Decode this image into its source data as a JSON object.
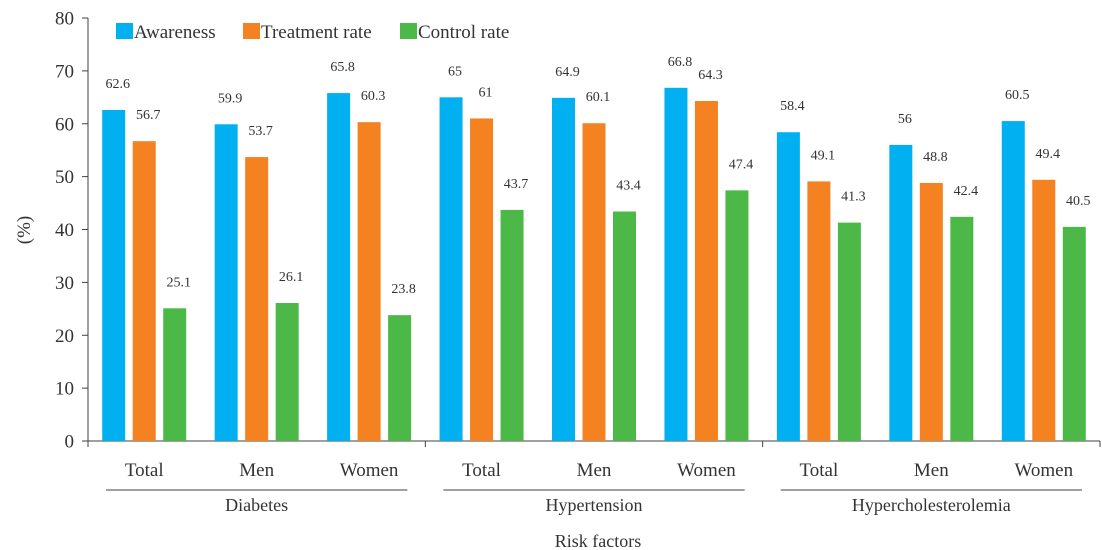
{
  "chart_data": {
    "type": "bar",
    "xlabel": "Risk factors",
    "ylabel": "(%)",
    "ylim": [
      0,
      80
    ],
    "yticks": [
      "0",
      "10",
      "20",
      "30",
      "40",
      "50",
      "60",
      "70",
      "80"
    ],
    "legend_position": "top-left",
    "groups": [
      {
        "name": "Diabetes",
        "categories": [
          "Total",
          "Men",
          "Women"
        ]
      },
      {
        "name": "Hypertension",
        "categories": [
          "Total",
          "Men",
          "Women"
        ]
      },
      {
        "name": "Hypercholesterolemia",
        "categories": [
          "Total",
          "Men",
          "Women"
        ]
      }
    ],
    "series": [
      {
        "name": "Awareness",
        "color": "#00b0f0",
        "values": [
          62.6,
          59.9,
          65.8,
          65,
          64.9,
          66.8,
          58.4,
          56,
          60.5
        ],
        "labels": [
          "62.6",
          "59.9",
          "65.8",
          "65",
          "64.9",
          "66.8",
          "58.4",
          "56",
          "60.5"
        ]
      },
      {
        "name": "Treatment rate",
        "color": "#f58220",
        "values": [
          56.7,
          53.7,
          60.3,
          61,
          60.1,
          64.3,
          49.1,
          48.8,
          49.4
        ],
        "labels": [
          "56.7",
          "53.7",
          "60.3",
          "61",
          "60.1",
          "64.3",
          "49.1",
          "48.8",
          "49.4"
        ]
      },
      {
        "name": "Control rate",
        "color": "#4cb848",
        "values": [
          25.1,
          26.1,
          23.8,
          43.7,
          43.4,
          47.4,
          41.3,
          42.4,
          40.5
        ],
        "labels": [
          "25.1",
          "26.1",
          "23.8",
          "43.7",
          "43.4",
          "47.4",
          "41.3",
          "42.4",
          "40.5"
        ]
      }
    ]
  }
}
